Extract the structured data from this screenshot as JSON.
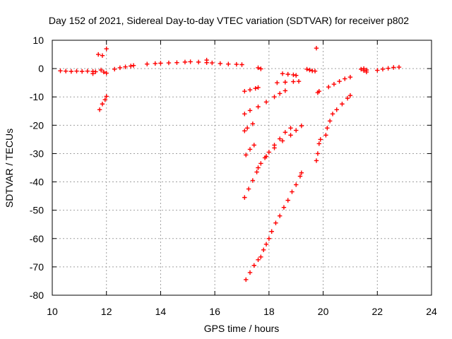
{
  "chart_data": {
    "type": "scatter",
    "title": "Day 152 of 2021, Sidereal Day-to-day VTEC variation (SDTVAR) for receiver p802",
    "xlabel": "GPS time / hours",
    "ylabel": "SDTVAR / TECUs",
    "xlim": [
      10,
      24
    ],
    "ylim": [
      -80,
      10
    ],
    "xticks": [
      10,
      12,
      14,
      16,
      18,
      20,
      22,
      24
    ],
    "yticks": [
      10,
      0,
      -10,
      -20,
      -30,
      -40,
      -50,
      -60,
      -70,
      -80
    ],
    "xtick_labels": [
      "10",
      "12",
      "14",
      "16",
      "18",
      "20",
      "22",
      "24"
    ],
    "ytick_labels": [
      "10",
      "0",
      "-10",
      "-20",
      "-30",
      "-40",
      "-50",
      "-60",
      "-70",
      "-80"
    ],
    "grid": true,
    "marker": "plus",
    "color": "#ff0000",
    "series": [
      {
        "points": [
          [
            10.3,
            -0.8
          ],
          [
            10.5,
            -0.9
          ],
          [
            10.7,
            -1.0
          ],
          [
            10.9,
            -0.9
          ],
          [
            11.1,
            -1.0
          ],
          [
            11.3,
            -0.9
          ],
          [
            11.5,
            -1.0
          ],
          [
            11.6,
            -1.1
          ],
          [
            11.5,
            -1.8
          ],
          [
            11.8,
            -0.5
          ],
          [
            11.9,
            -1.2
          ],
          [
            12.0,
            -1.6
          ],
          [
            11.7,
            5.0
          ],
          [
            11.85,
            4.6
          ],
          [
            12.0,
            7.0
          ],
          [
            11.75,
            -14.5
          ],
          [
            11.85,
            -12.5
          ],
          [
            11.95,
            -11.0
          ],
          [
            12.0,
            -9.8
          ],
          [
            12.3,
            -0.2
          ],
          [
            12.5,
            0.3
          ],
          [
            12.7,
            0.6
          ],
          [
            12.9,
            0.9
          ],
          [
            13.0,
            1.1
          ],
          [
            13.5,
            1.6
          ],
          [
            13.8,
            1.8
          ],
          [
            14.0,
            1.9
          ],
          [
            14.3,
            2.0
          ],
          [
            14.6,
            2.1
          ],
          [
            14.9,
            2.3
          ],
          [
            15.1,
            2.4
          ],
          [
            15.4,
            2.3
          ],
          [
            15.7,
            2.1
          ],
          [
            15.9,
            2.0
          ],
          [
            16.2,
            1.8
          ],
          [
            16.5,
            1.6
          ],
          [
            16.8,
            1.5
          ],
          [
            17.0,
            1.4
          ],
          [
            15.7,
            3.0
          ],
          [
            17.6,
            0.3
          ],
          [
            17.7,
            -0.1
          ],
          [
            17.1,
            -8.0
          ],
          [
            17.3,
            -7.5
          ],
          [
            17.5,
            -7.0
          ],
          [
            17.6,
            -6.7
          ],
          [
            17.1,
            -16.0
          ],
          [
            17.3,
            -14.8
          ],
          [
            17.6,
            -13.5
          ],
          [
            17.9,
            -11.8
          ],
          [
            18.2,
            -10.0
          ],
          [
            18.4,
            -8.8
          ],
          [
            18.6,
            -7.8
          ],
          [
            17.1,
            -22.0
          ],
          [
            17.2,
            -21.0
          ],
          [
            17.4,
            -19.5
          ],
          [
            17.15,
            -30.5
          ],
          [
            17.3,
            -28.5
          ],
          [
            17.45,
            -27.0
          ],
          [
            17.1,
            -45.5
          ],
          [
            17.25,
            -42.5
          ],
          [
            17.4,
            -39.5
          ],
          [
            17.55,
            -36.5
          ],
          [
            17.7,
            -33.5
          ],
          [
            17.85,
            -31.5
          ],
          [
            18.0,
            -29.5
          ],
          [
            18.2,
            -27.0
          ],
          [
            18.4,
            -24.8
          ],
          [
            18.6,
            -22.5
          ],
          [
            18.8,
            -21.0
          ],
          [
            17.6,
            -35.0
          ],
          [
            17.9,
            -31.0
          ],
          [
            18.2,
            -28.0
          ],
          [
            18.5,
            -25.5
          ],
          [
            18.8,
            -23.5
          ],
          [
            19.0,
            -21.8
          ],
          [
            19.2,
            -20.2
          ],
          [
            17.15,
            -74.5
          ],
          [
            17.3,
            -72.0
          ],
          [
            17.45,
            -69.5
          ],
          [
            17.6,
            -67.5
          ],
          [
            17.7,
            -66.5
          ],
          [
            17.8,
            -64.0
          ],
          [
            17.9,
            -62.0
          ],
          [
            18.0,
            -60.0
          ],
          [
            18.1,
            -57.5
          ],
          [
            18.25,
            -54.5
          ],
          [
            18.4,
            -52.0
          ],
          [
            18.55,
            -49.0
          ],
          [
            18.7,
            -46.5
          ],
          [
            18.85,
            -43.5
          ],
          [
            19.0,
            -41.0
          ],
          [
            19.15,
            -38.0
          ],
          [
            19.2,
            -36.8
          ],
          [
            18.5,
            -1.8
          ],
          [
            18.7,
            -2.0
          ],
          [
            18.9,
            -2.2
          ],
          [
            19.0,
            -2.4
          ],
          [
            18.3,
            -5.0
          ],
          [
            18.6,
            -4.8
          ],
          [
            18.9,
            -4.6
          ],
          [
            19.1,
            -4.5
          ],
          [
            19.4,
            -0.2
          ],
          [
            19.5,
            -0.5
          ],
          [
            19.6,
            -0.8
          ],
          [
            19.7,
            -0.9
          ],
          [
            19.75,
            7.2
          ],
          [
            19.8,
            -8.5
          ],
          [
            19.85,
            -8.0
          ],
          [
            19.75,
            -32.5
          ],
          [
            19.8,
            -30.0
          ],
          [
            19.85,
            -26.5
          ],
          [
            19.9,
            -25.0
          ],
          [
            20.1,
            -23.5
          ],
          [
            20.15,
            -21.0
          ],
          [
            20.25,
            -18.5
          ],
          [
            20.35,
            -16.0
          ],
          [
            20.5,
            -14.5
          ],
          [
            20.7,
            -12.5
          ],
          [
            20.9,
            -10.5
          ],
          [
            21.0,
            -9.5
          ],
          [
            20.2,
            -6.5
          ],
          [
            20.4,
            -5.5
          ],
          [
            20.6,
            -4.5
          ],
          [
            20.8,
            -3.6
          ],
          [
            21.0,
            -3.0
          ],
          [
            21.4,
            -0.2
          ],
          [
            21.5,
            -0.7
          ],
          [
            21.6,
            -1.2
          ],
          [
            21.5,
            0.0
          ],
          [
            21.6,
            -0.5
          ],
          [
            22.0,
            -0.6
          ],
          [
            22.2,
            -0.2
          ],
          [
            22.4,
            0.1
          ],
          [
            22.6,
            0.4
          ],
          [
            22.8,
            0.5
          ]
        ]
      }
    ]
  }
}
